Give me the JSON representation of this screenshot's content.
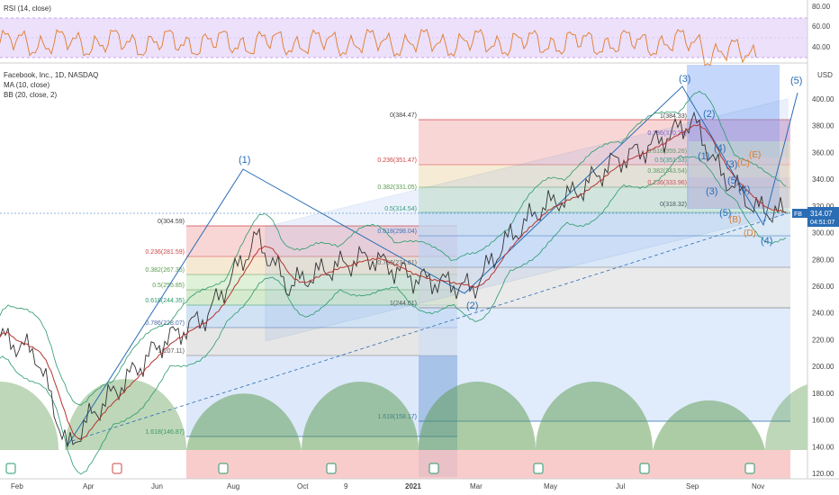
{
  "rsi_legend": "RSI (14, close)",
  "legend": {
    "title": "Facebook, Inc., 1D, NASDAQ",
    "ma": "MA (10, close)",
    "bb": "BB (20, close, 2)"
  },
  "price_badge": {
    "symbol": "FB",
    "price": "314.07",
    "countdown": "04:51:07"
  },
  "currency": "USD",
  "colors": {
    "price_line": "#2a6db5",
    "ma": "#b5342f",
    "rsi": "#e07b2a",
    "rsi_band": "#b98be6",
    "fib_red": "#f2b8b8",
    "fib_green": "#cfe8c6",
    "fib_blue": "#b7cdf5",
    "fib_gray": "#dcdcdc",
    "cycle": "#5a9a4d",
    "wave_label": "#2a6db5"
  },
  "chart_data": [
    {
      "type": "line",
      "name": "RSI panel",
      "legend": "RSI (14, close)",
      "ylim": [
        30,
        90
      ],
      "y_ticks": [
        "80.00",
        "60.00",
        "40.00"
      ],
      "band": [
        30,
        70
      ],
      "x": [
        "Feb",
        "Apr",
        "Jun",
        "Aug",
        "Oct",
        "Jan",
        "Mar",
        "May",
        "Jul",
        "Sep",
        "Nov"
      ],
      "values": [
        52,
        58,
        45,
        62,
        55,
        50,
        60,
        54,
        65,
        48,
        44
      ]
    },
    {
      "type": "line",
      "name": "Price panel",
      "title": "Facebook, Inc., 1D, NASDAQ",
      "ylabel": "USD",
      "ylim": [
        115,
        420
      ],
      "y_ticks": [
        "400.00",
        "380.00",
        "360.00",
        "340.00",
        "320.00",
        "300.00",
        "280.00",
        "260.00",
        "240.00",
        "220.00",
        "200.00",
        "180.00",
        "160.00",
        "140.00",
        "120.00"
      ],
      "x_ticks": [
        "Feb",
        "Apr",
        "Jun",
        "Aug",
        "Oct",
        "9",
        "2021",
        "Mar",
        "May",
        "Jul",
        "Sep",
        "Nov"
      ],
      "series": [
        {
          "name": "FB",
          "points": [
            [
              "Feb",
              222
            ],
            [
              "Mar",
              150
            ],
            [
              "Mar",
              138
            ],
            [
              "Apr",
              168
            ],
            [
              "May",
              200
            ],
            [
              "Jun",
              235
            ],
            [
              "Jul",
              242
            ],
            [
              "Aug",
              296
            ],
            [
              "Sep",
              260
            ],
            [
              "Oct",
              264
            ],
            [
              "Nov",
              280
            ],
            [
              "Dec",
              278
            ],
            [
              "Jan",
              266
            ],
            [
              "Feb",
              266
            ],
            [
              "Mar",
              262
            ],
            [
              "Apr",
              300
            ],
            [
              "May",
              322
            ],
            [
              "Jun",
              334
            ],
            [
              "Jul",
              356
            ],
            [
              "Aug",
              365
            ],
            [
              "Sep",
              384
            ],
            [
              "Oct",
              335
            ],
            [
              "Nov",
              314
            ]
          ]
        },
        {
          "name": "MA (10, close)",
          "points": [
            [
              "Feb",
              214
            ],
            [
              "Mar",
              160
            ],
            [
              "Apr",
              160
            ],
            [
              "May",
              192
            ],
            [
              "Jun",
              230
            ],
            [
              "Jul",
              240
            ],
            [
              "Aug",
              285
            ],
            [
              "Sep",
              262
            ],
            [
              "Oct",
              265
            ],
            [
              "Nov",
              276
            ],
            [
              "Dec",
              276
            ],
            [
              "Jan",
              268
            ],
            [
              "Feb",
              266
            ],
            [
              "Mar",
              262
            ],
            [
              "Apr",
              295
            ],
            [
              "May",
              318
            ],
            [
              "Jun",
              330
            ],
            [
              "Jul",
              350
            ],
            [
              "Aug",
              362
            ],
            [
              "Sep",
              378
            ],
            [
              "Oct",
              340
            ],
            [
              "Nov",
              320
            ]
          ]
        }
      ],
      "last_price": 314.07,
      "fib_levels_1": [
        {
          "label": "0(304.59)",
          "value": 304.59
        },
        {
          "label": "0.236(281.59)",
          "value": 281.59
        },
        {
          "label": "0.382(267.35)",
          "value": 267.35
        },
        {
          "label": "0.5(255.85)",
          "value": 255.85
        },
        {
          "label": "0.618(244.35)",
          "value": 244.35
        },
        {
          "label": "0.786(228.07)",
          "value": 228.07
        },
        {
          "label": "1(207.11)",
          "value": 207.11
        },
        {
          "label": "1.618(146.87)",
          "value": 146.87
        }
      ],
      "fib_levels_2": [
        {
          "label": "0(384.47)",
          "value": 384.47
        },
        {
          "label": "0.236(351.47)",
          "value": 351.47
        },
        {
          "label": "0.382(331.05)",
          "value": 331.05
        },
        {
          "label": "0.5(314.54)",
          "value": 314.54
        },
        {
          "label": "0.618(298.04)",
          "value": 298.04
        },
        {
          "label": "0.786(274.61)",
          "value": 274.61
        },
        {
          "label": "1(244.61)",
          "value": 244.61
        },
        {
          "label": "1.618(158.17)",
          "value": 158.17
        }
      ],
      "fib_levels_3": [
        {
          "label": "1(384.33)",
          "value": 384.33
        },
        {
          "label": "0.786(370.29)",
          "value": 370.29
        },
        {
          "label": "0.618(359.26)",
          "value": 359.26
        },
        {
          "label": "0.5(351.33)",
          "value": 351.33
        },
        {
          "label": "0.382(343.54)",
          "value": 343.54
        },
        {
          "label": "0.236(333.96)",
          "value": 333.96
        },
        {
          "label": "0(318.32)",
          "value": 318.32
        }
      ],
      "wave_labels": [
        "(1)",
        "(2)",
        "(3)",
        "(4)",
        "(5)",
        "(2)",
        "(3)",
        "(1)",
        "(4)",
        "(5)",
        "(3)",
        "(5)",
        "(4)"
      ],
      "orange_labels": [
        "(E)",
        "(B)",
        "(D)",
        "(C)"
      ]
    }
  ]
}
